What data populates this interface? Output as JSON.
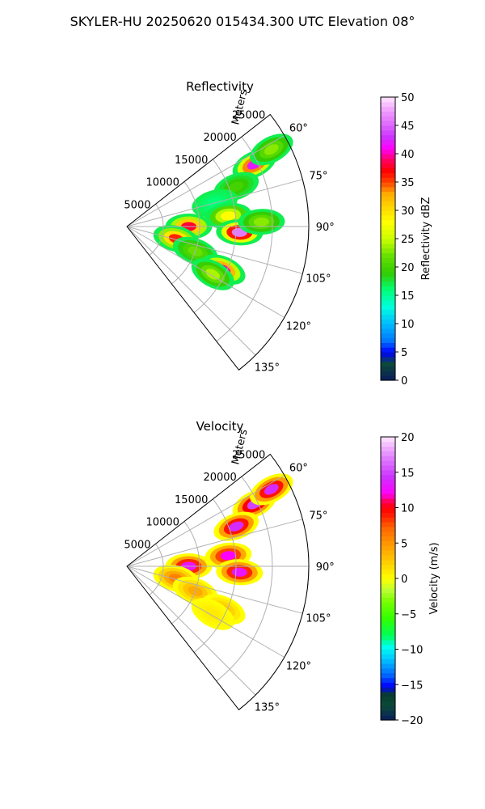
{
  "title": "SKYLER-HU  20250620  015434.300 UTC Elevation 08°",
  "chart_data": [
    {
      "type": "heatmap",
      "projection": "polar-sector",
      "title": "Reflectivity",
      "range_label": "Meters",
      "range_ticks": [
        "5000",
        "10000",
        "15000",
        "20000",
        "25000"
      ],
      "range_tick_values": [
        5000,
        10000,
        15000,
        20000,
        25000
      ],
      "rmax": 25000,
      "azimuth_range": [
        52,
        142
      ],
      "azimuth_ticks": [
        "60°",
        "75°",
        "90°",
        "105°",
        "120°",
        "135°"
      ],
      "azimuth_tick_values": [
        60,
        75,
        90,
        105,
        120,
        135
      ],
      "colorbar": {
        "label": "Reflectivity dBZ",
        "min": 0,
        "max": 50,
        "ticks": [
          "0",
          "5",
          "10",
          "15",
          "20",
          "25",
          "30",
          "35",
          "40",
          "45",
          "50"
        ]
      },
      "echoes": [
        {
          "az": 64,
          "r": 19500,
          "peak": 42
        },
        {
          "az": 62,
          "r": 22500,
          "peak": 23
        },
        {
          "az": 70,
          "r": 16000,
          "peak": 20
        },
        {
          "az": 75,
          "r": 12500,
          "peak": 16
        },
        {
          "az": 84,
          "r": 14000,
          "peak": 28
        },
        {
          "az": 90,
          "r": 8500,
          "peak": 38
        },
        {
          "az": 93,
          "r": 15500,
          "peak": 46
        },
        {
          "az": 88,
          "r": 18500,
          "peak": 23
        },
        {
          "az": 104,
          "r": 7000,
          "peak": 36
        },
        {
          "az": 110,
          "r": 10000,
          "peak": 22
        },
        {
          "az": 114,
          "r": 14500,
          "peak": 40
        },
        {
          "az": 119,
          "r": 13500,
          "peak": 24
        }
      ]
    },
    {
      "type": "heatmap",
      "projection": "polar-sector",
      "title": "Velocity",
      "range_label": "Meters",
      "range_ticks": [
        "5000",
        "10000",
        "15000",
        "20000",
        "25000"
      ],
      "range_tick_values": [
        5000,
        10000,
        15000,
        20000,
        25000
      ],
      "rmax": 25000,
      "azimuth_range": [
        52,
        142
      ],
      "azimuth_ticks": [
        "60°",
        "75°",
        "90°",
        "105°",
        "120°",
        "135°"
      ],
      "azimuth_tick_values": [
        60,
        75,
        90,
        105,
        120,
        135
      ],
      "colorbar": {
        "label": "Velocity (m/s)",
        "min": -20,
        "max": 20,
        "ticks": [
          "−20",
          "−15",
          "−10",
          "−5",
          "0",
          "5",
          "10",
          "15",
          "20"
        ]
      },
      "echoes": [
        {
          "az": 64,
          "r": 19500,
          "peak": 15
        },
        {
          "az": 62,
          "r": 22500,
          "peak": 14
        },
        {
          "az": 70,
          "r": 16000,
          "peak": 14
        },
        {
          "az": 84,
          "r": 14000,
          "peak": 12
        },
        {
          "az": 90,
          "r": 8500,
          "peak": 13
        },
        {
          "az": 93,
          "r": 15500,
          "peak": 13
        },
        {
          "az": 104,
          "r": 7000,
          "peak": 6
        },
        {
          "az": 110,
          "r": 10000,
          "peak": 4
        },
        {
          "az": 114,
          "r": 14500,
          "peak": 3
        },
        {
          "az": 119,
          "r": 13500,
          "peak": 1
        }
      ]
    }
  ]
}
